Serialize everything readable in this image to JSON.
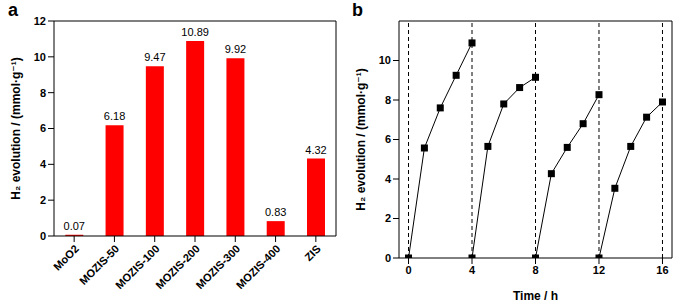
{
  "chart_data": [
    {
      "type": "bar",
      "title": "a",
      "categories": [
        "MoO2",
        "MOZIS-50",
        "MOZIS-100",
        "MOZIS-200",
        "MOZIS-300",
        "MOZIS-400",
        "ZIS"
      ],
      "values": [
        0.07,
        6.18,
        9.47,
        10.89,
        9.92,
        0.83,
        4.32
      ],
      "color": "#ff0000",
      "y_label": "H₂ evolution / (mmol·g⁻¹)",
      "ylim": [
        0,
        12
      ],
      "yticks": [
        0,
        2,
        4,
        6,
        8,
        10,
        12
      ],
      "data_labels": true
    },
    {
      "type": "line",
      "title": "b",
      "x_label": "Time / h",
      "y_label": "H₂ evolution / (mmol·g⁻¹)",
      "series": [
        {
          "color": "#000000",
          "marker": "square",
          "x": [
            0,
            1,
            2,
            3,
            4
          ],
          "values": [
            0,
            5.57,
            7.6,
            9.25,
            10.89
          ]
        },
        {
          "color": "#000000",
          "marker": "square",
          "x": [
            4,
            5,
            6,
            7,
            8
          ],
          "values": [
            0,
            5.65,
            7.8,
            8.63,
            9.15
          ]
        },
        {
          "color": "#000000",
          "marker": "square",
          "x": [
            8,
            9,
            10,
            11,
            12
          ],
          "values": [
            0,
            4.27,
            5.6,
            6.8,
            8.27
          ]
        },
        {
          "color": "#000000",
          "marker": "square",
          "x": [
            12,
            13,
            14,
            15,
            16
          ],
          "values": [
            0,
            3.53,
            5.65,
            7.13,
            7.9
          ]
        }
      ],
      "xlim": [
        -0.6,
        16.6
      ],
      "xticks": [
        0,
        4,
        8,
        12,
        16
      ],
      "ylim": [
        0,
        12
      ],
      "yticks": [
        0,
        2,
        4,
        6,
        8,
        10
      ]
    }
  ]
}
